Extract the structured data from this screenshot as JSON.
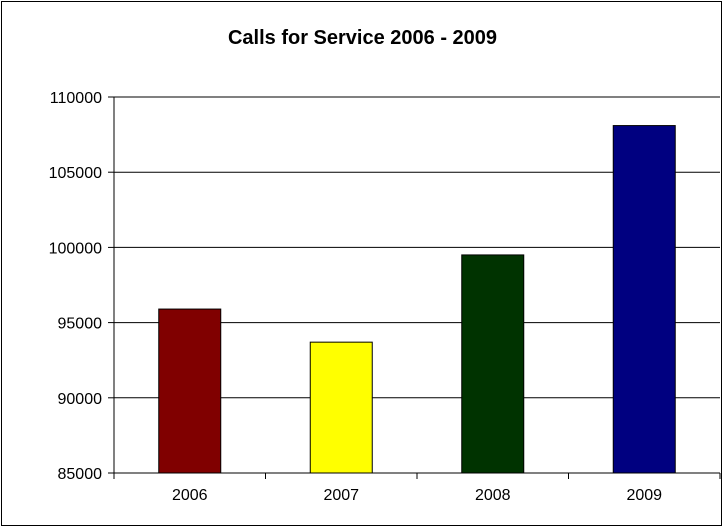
{
  "chart_data": {
    "type": "bar",
    "title": "Calls for Service 2006 - 2009",
    "xlabel": "",
    "ylabel": "",
    "categories": [
      "2006",
      "2007",
      "2008",
      "2009"
    ],
    "values": [
      95900,
      93700,
      99500,
      108100
    ],
    "colors": [
      "#800000",
      "#FFFF00",
      "#003300",
      "#000080"
    ],
    "ylim": [
      85000,
      110000
    ],
    "yticks": [
      "85000",
      "90000",
      "95000",
      "100000",
      "105000",
      "110000"
    ],
    "grid": true,
    "legend": "none"
  }
}
